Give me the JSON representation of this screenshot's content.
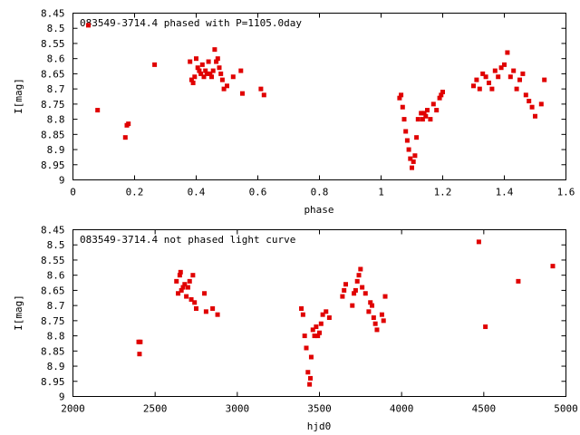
{
  "point_color": "#e00000",
  "chart_data": [
    {
      "type": "scatter",
      "title": "083549-3714.4 phased with P=1105.0day",
      "xlabel": "phase",
      "ylabel": "I[mag]",
      "xlim": [
        0,
        1.6
      ],
      "ylim": [
        8.45,
        9
      ],
      "y_inverted": true,
      "grid": false,
      "xticks": [
        "0",
        "0.2",
        "0.4",
        "0.6",
        "0.8",
        "1",
        "1.2",
        "1.4",
        "1.6"
      ],
      "yticks": [
        "8.45",
        "8.5",
        "8.55",
        "8.6",
        "8.65",
        "8.7",
        "8.75",
        "8.8",
        "8.85",
        "8.9",
        "8.95",
        "9"
      ],
      "x": [
        0.05,
        0.08,
        0.17,
        0.175,
        0.18,
        0.265,
        0.38,
        0.385,
        0.39,
        0.395,
        0.4,
        0.405,
        0.41,
        0.415,
        0.42,
        0.425,
        0.43,
        0.435,
        0.44,
        0.445,
        0.45,
        0.455,
        0.46,
        0.465,
        0.47,
        0.475,
        0.48,
        0.485,
        0.49,
        0.5,
        0.52,
        0.545,
        0.55,
        0.61,
        0.62,
        1.06,
        1.065,
        1.07,
        1.075,
        1.08,
        1.085,
        1.09,
        1.095,
        1.1,
        1.105,
        1.11,
        1.115,
        1.12,
        1.13,
        1.135,
        1.14,
        1.145,
        1.15,
        1.16,
        1.17,
        1.18,
        1.19,
        1.195,
        1.2,
        1.3,
        1.31,
        1.32,
        1.33,
        1.34,
        1.35,
        1.36,
        1.37,
        1.38,
        1.39,
        1.4,
        1.41,
        1.42,
        1.43,
        1.44,
        1.45,
        1.46,
        1.47,
        1.48,
        1.49,
        1.5,
        1.52,
        1.53
      ],
      "y": [
        8.49,
        8.77,
        8.86,
        8.82,
        8.815,
        8.62,
        8.61,
        8.67,
        8.68,
        8.66,
        8.6,
        8.63,
        8.64,
        8.65,
        8.62,
        8.66,
        8.64,
        8.65,
        8.61,
        8.65,
        8.66,
        8.64,
        8.57,
        8.61,
        8.6,
        8.63,
        8.65,
        8.67,
        8.7,
        8.69,
        8.66,
        8.64,
        8.715,
        8.7,
        8.72,
        8.73,
        8.72,
        8.76,
        8.8,
        8.84,
        8.87,
        8.9,
        8.93,
        8.96,
        8.94,
        8.92,
        8.86,
        8.8,
        8.78,
        8.8,
        8.78,
        8.79,
        8.77,
        8.8,
        8.75,
        8.77,
        8.73,
        8.72,
        8.71,
        8.69,
        8.67,
        8.7,
        8.65,
        8.66,
        8.68,
        8.7,
        8.64,
        8.66,
        8.63,
        8.62,
        8.58,
        8.66,
        8.64,
        8.7,
        8.67,
        8.65,
        8.72,
        8.74,
        8.76,
        8.79,
        8.75,
        8.67
      ]
    },
    {
      "type": "scatter",
      "title": "083549-3714.4 not phased light curve",
      "xlabel": "hjd0",
      "ylabel": "I[mag]",
      "xlim": [
        2000,
        5000
      ],
      "ylim": [
        8.45,
        9
      ],
      "y_inverted": true,
      "grid": false,
      "xticks": [
        "2000",
        "2500",
        "3000",
        "3500",
        "4000",
        "4500",
        "5000"
      ],
      "yticks": [
        "8.45",
        "8.5",
        "8.55",
        "8.6",
        "8.65",
        "8.7",
        "8.75",
        "8.8",
        "8.85",
        "8.9",
        "8.95",
        "9"
      ],
      "x": [
        2400,
        2405,
        2410,
        2630,
        2640,
        2650,
        2655,
        2660,
        2670,
        2680,
        2690,
        2700,
        2710,
        2720,
        2730,
        2740,
        2750,
        2800,
        2810,
        2850,
        2880,
        3390,
        3400,
        3410,
        3420,
        3430,
        3440,
        3445,
        3450,
        3460,
        3470,
        3480,
        3490,
        3500,
        3510,
        3520,
        3540,
        3560,
        3640,
        3650,
        3660,
        3700,
        3710,
        3720,
        3730,
        3740,
        3750,
        3760,
        3780,
        3800,
        3810,
        3820,
        3830,
        3840,
        3850,
        3880,
        3890,
        3900,
        4470,
        4510,
        4710,
        4920
      ],
      "y": [
        8.82,
        8.86,
        8.82,
        8.62,
        8.66,
        8.6,
        8.59,
        8.65,
        8.64,
        8.63,
        8.67,
        8.64,
        8.62,
        8.68,
        8.6,
        8.69,
        8.71,
        8.66,
        8.72,
        8.71,
        8.73,
        8.71,
        8.73,
        8.8,
        8.84,
        8.92,
        8.96,
        8.94,
        8.87,
        8.78,
        8.8,
        8.77,
        8.8,
        8.79,
        8.76,
        8.73,
        8.72,
        8.74,
        8.67,
        8.65,
        8.63,
        8.7,
        8.66,
        8.65,
        8.62,
        8.6,
        8.58,
        8.64,
        8.66,
        8.72,
        8.69,
        8.7,
        8.74,
        8.76,
        8.78,
        8.73,
        8.75,
        8.67,
        8.49,
        8.77,
        8.62,
        8.57
      ]
    }
  ]
}
